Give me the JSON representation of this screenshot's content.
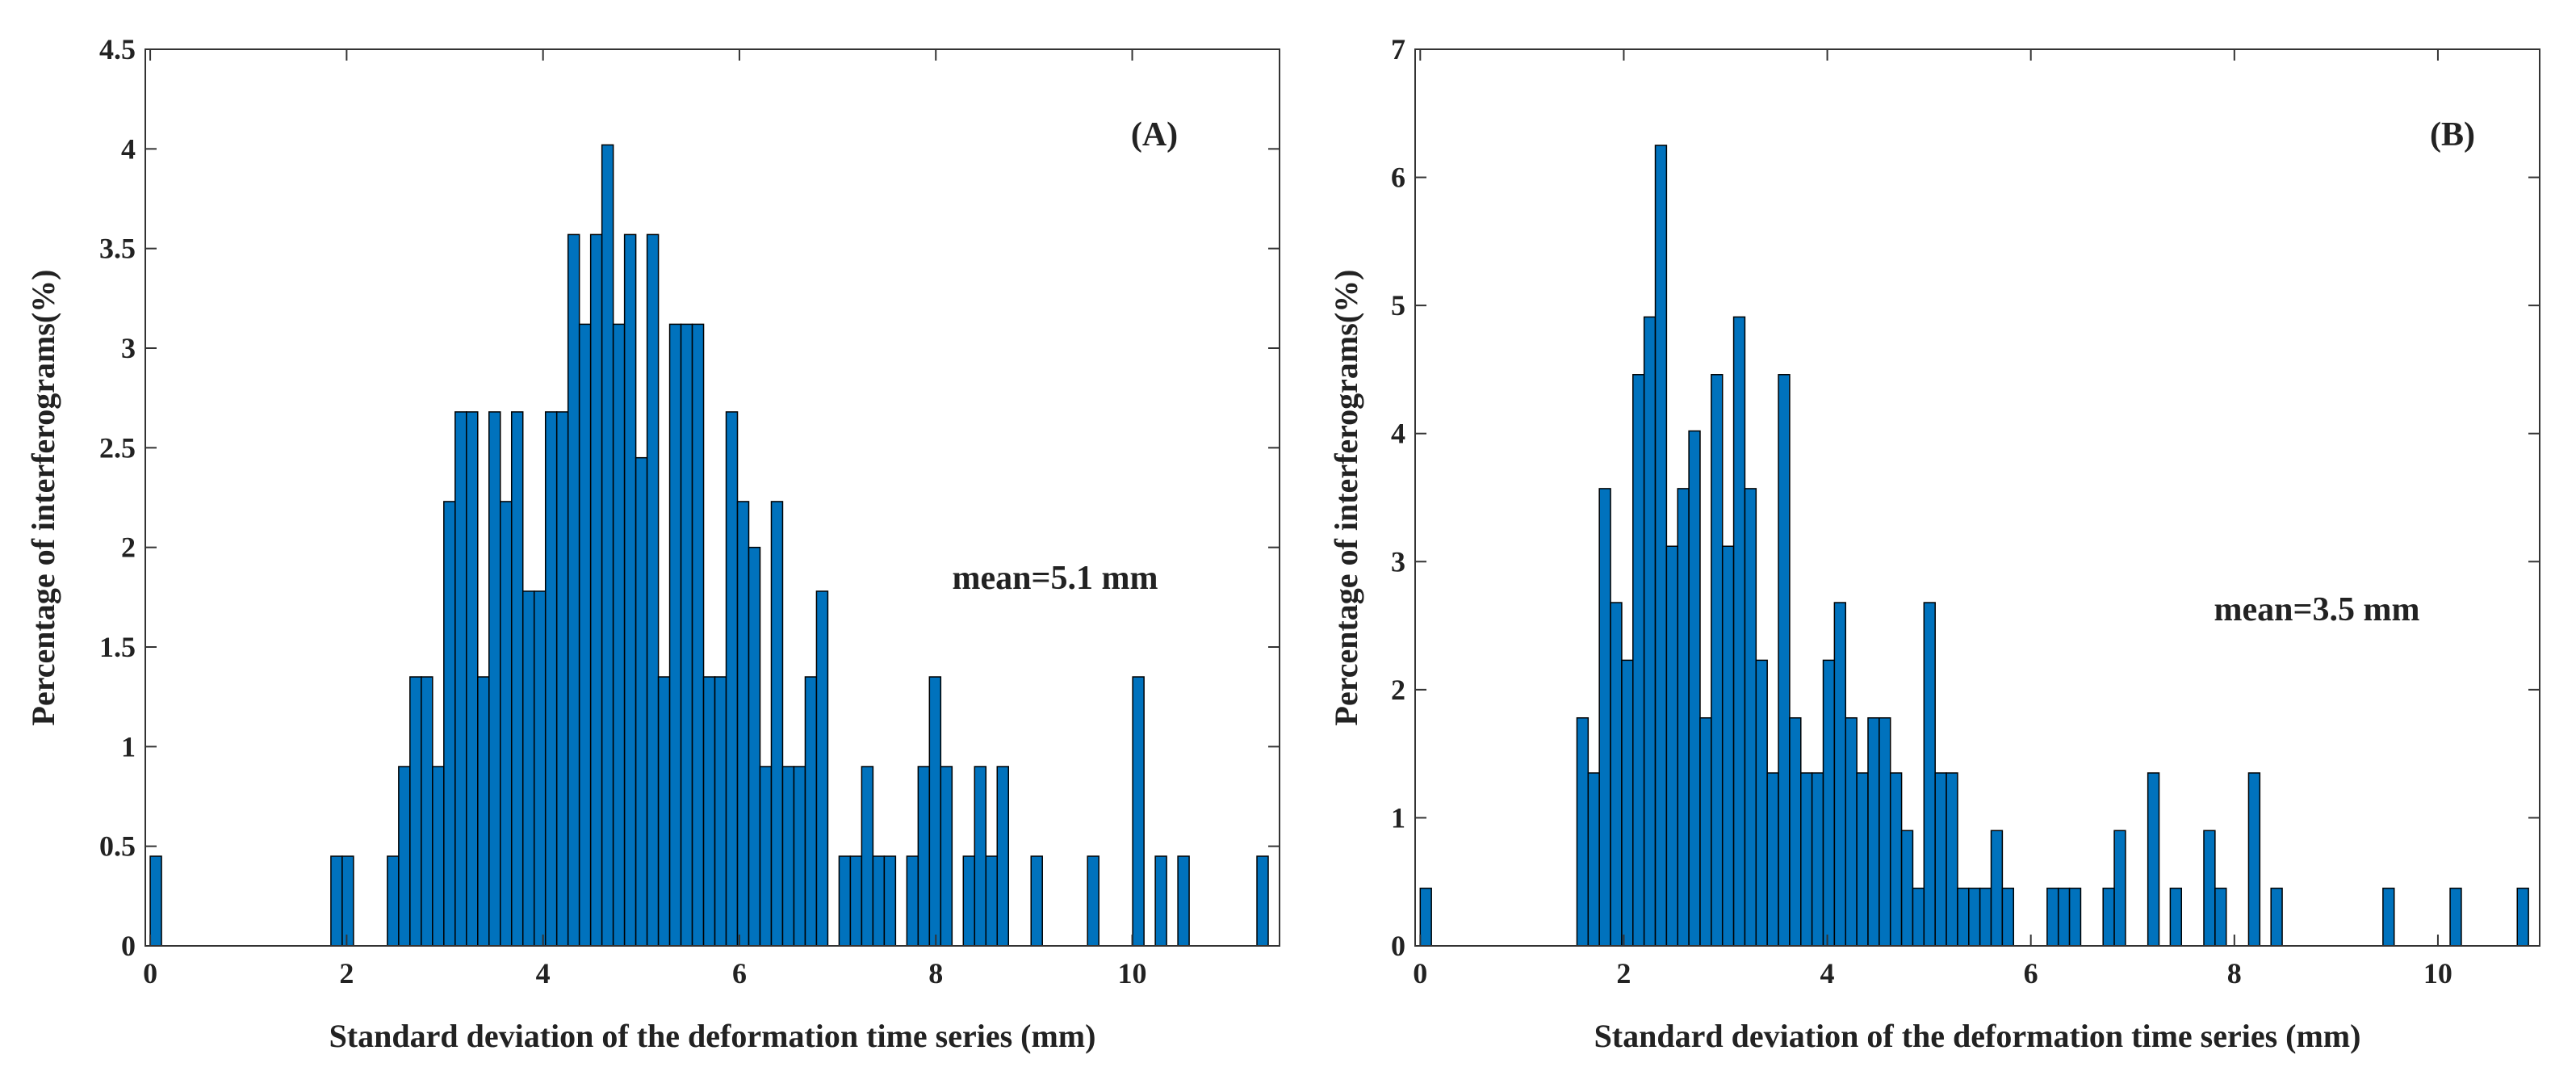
{
  "chart_data": [
    {
      "type": "histogram",
      "title": "(A)",
      "annotation": "mean=5.1 mm",
      "xlabel": "Standard deviation of the deformation time series (mm)",
      "ylabel": "Percentage of interferograms(%)",
      "color": "#0072bd",
      "bins": [
        0,
        0.115,
        0.23,
        0.345,
        0.46,
        0.575,
        0.69,
        0.805,
        0.92,
        1.035,
        1.15,
        1.265,
        1.38,
        1.495,
        1.61,
        1.725,
        1.84,
        1.955,
        2.07,
        2.185,
        2.3,
        2.415,
        2.53,
        2.645,
        2.76,
        2.875,
        2.99,
        3.105,
        3.22,
        3.335,
        3.45,
        3.565,
        3.68,
        3.795,
        3.91,
        4.025,
        4.14,
        4.255,
        4.37,
        4.485,
        4.6,
        4.715,
        4.83,
        4.945,
        5.06,
        5.175,
        5.29,
        5.405,
        5.52,
        5.635,
        5.75,
        5.865,
        5.98,
        6.095,
        6.21,
        6.325,
        6.44,
        6.555,
        6.67,
        6.785,
        6.9,
        7.015,
        7.13,
        7.245,
        7.36,
        7.475,
        7.59,
        7.705,
        7.82,
        7.935,
        8.05,
        8.165,
        8.28,
        8.395,
        8.51,
        8.625,
        8.74,
        8.855,
        8.97,
        9.085,
        9.2,
        9.315,
        9.43,
        9.545,
        9.66,
        9.775,
        9.89,
        10.005,
        10.12,
        10.235,
        10.35,
        10.465,
        10.58,
        10.695,
        10.81,
        10.925,
        11.04,
        11.155,
        11.27,
        11.385,
        11.5
      ],
      "values": [
        0.45,
        0,
        0,
        0,
        0,
        0,
        0,
        0,
        0,
        0,
        0,
        0,
        0,
        0,
        0,
        0,
        0.45,
        0.45,
        0,
        0,
        0,
        0.45,
        0.9,
        1.35,
        1.35,
        0.9,
        2.23,
        2.68,
        2.68,
        1.35,
        2.68,
        2.23,
        2.68,
        1.78,
        1.78,
        2.68,
        2.68,
        3.57,
        3.12,
        3.57,
        4.02,
        3.12,
        3.57,
        2.45,
        3.57,
        1.35,
        3.12,
        3.12,
        3.12,
        1.35,
        1.35,
        2.68,
        2.23,
        2.0,
        0.9,
        2.23,
        0.9,
        0.9,
        1.35,
        1.78,
        0,
        0.45,
        0.45,
        0.9,
        0.45,
        0.45,
        0,
        0.45,
        0.9,
        1.35,
        0.9,
        0,
        0.45,
        0.9,
        0.45,
        0.9,
        0,
        0,
        0.45,
        0,
        0,
        0,
        0,
        0.45,
        0,
        0,
        0,
        1.35,
        0,
        0.45,
        0,
        0.45,
        0,
        0,
        0,
        0,
        0,
        0,
        0.45,
        0
      ],
      "xlim": [
        -0.05,
        11.5
      ],
      "ylim": [
        0,
        4.5
      ],
      "xticks": [
        0,
        2,
        4,
        6,
        8,
        10
      ],
      "yticks": [
        0,
        0.5,
        1,
        1.5,
        2,
        2.5,
        3,
        3.5,
        4,
        4.5
      ]
    },
    {
      "type": "histogram",
      "title": "(B)",
      "annotation": "mean=3.5 mm",
      "xlabel": "Standard deviation of the deformation time series (mm)",
      "ylabel": "Percentage of interferograms(%)",
      "color": "#0072bd",
      "bins": [
        0,
        0.11,
        0.22,
        0.33,
        0.44,
        0.55,
        0.66,
        0.77,
        0.88,
        0.99,
        1.1,
        1.21,
        1.32,
        1.43,
        1.54,
        1.65,
        1.76,
        1.87,
        1.98,
        2.09,
        2.2,
        2.31,
        2.42,
        2.53,
        2.64,
        2.75,
        2.86,
        2.97,
        3.08,
        3.19,
        3.3,
        3.41,
        3.52,
        3.63,
        3.74,
        3.85,
        3.96,
        4.07,
        4.18,
        4.29,
        4.4,
        4.51,
        4.62,
        4.73,
        4.84,
        4.95,
        5.06,
        5.17,
        5.28,
        5.39,
        5.5,
        5.61,
        5.72,
        5.83,
        5.94,
        6.05,
        6.16,
        6.27,
        6.38,
        6.49,
        6.6,
        6.71,
        6.82,
        6.93,
        7.04,
        7.15,
        7.26,
        7.37,
        7.48,
        7.59,
        7.7,
        7.81,
        7.92,
        8.03,
        8.14,
        8.25,
        8.36,
        8.47,
        8.58,
        8.69,
        8.8,
        8.91,
        9.02,
        9.13,
        9.24,
        9.35,
        9.46,
        9.57,
        9.68,
        9.79,
        9.9,
        10.01,
        10.12,
        10.23,
        10.34,
        10.45,
        10.56,
        10.67,
        10.78,
        10.89,
        11.0
      ],
      "values": [
        0.45,
        0,
        0,
        0,
        0,
        0,
        0,
        0,
        0,
        0,
        0,
        0,
        0,
        0,
        1.78,
        1.35,
        3.57,
        2.68,
        2.23,
        4.46,
        4.91,
        6.25,
        3.12,
        3.57,
        4.02,
        1.78,
        4.46,
        3.12,
        4.91,
        3.57,
        2.23,
        1.35,
        4.46,
        1.78,
        1.35,
        1.35,
        2.23,
        2.68,
        1.78,
        1.35,
        1.78,
        1.78,
        1.35,
        0.9,
        0.45,
        2.68,
        1.35,
        1.35,
        0.45,
        0.45,
        0.45,
        0.9,
        0.45,
        0,
        0,
        0,
        0.45,
        0.45,
        0.45,
        0,
        0,
        0.45,
        0.9,
        0,
        0,
        1.35,
        0,
        0.45,
        0,
        0,
        0.9,
        0.45,
        0,
        0,
        1.35,
        0,
        0.45,
        0,
        0,
        0,
        0,
        0,
        0,
        0,
        0,
        0,
        0.45,
        0,
        0,
        0,
        0,
        0,
        0.45,
        0,
        0,
        0,
        0,
        0,
        0.45,
        0
      ],
      "xlim": [
        -0.05,
        11.0
      ],
      "ylim": [
        0,
        7
      ],
      "xticks": [
        0,
        2,
        4,
        6,
        8,
        10
      ],
      "yticks": [
        0,
        1,
        2,
        3,
        4,
        5,
        6,
        7
      ]
    }
  ]
}
